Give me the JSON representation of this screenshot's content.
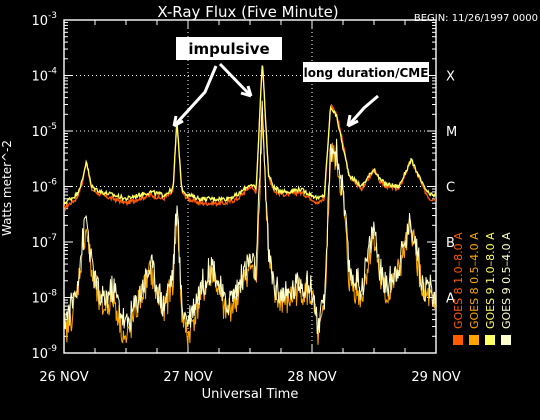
{
  "chart_data": {
    "type": "line",
    "title": "X-Ray Flux (Five Minute)",
    "begin_label": "BEGIN: 11/26/1997 0000",
    "xlabel": "Universal Time",
    "ylabel": "Watts meter^-2",
    "y_scale": "log",
    "ylim": [
      1e-09,
      0.001
    ],
    "xlim": [
      0,
      3
    ],
    "x_units": "days since 26 NOV 1997 0000 UT",
    "x_ticks": [
      {
        "x": 0,
        "label": "26 NOV"
      },
      {
        "x": 1,
        "label": "27 NOV"
      },
      {
        "x": 2,
        "label": "28 NOV"
      },
      {
        "x": 3,
        "label": "29 NOV"
      }
    ],
    "y_ticks": [
      {
        "exp": -9,
        "label": "10",
        "sup": "-9"
      },
      {
        "exp": -8,
        "label": "10",
        "sup": "-8"
      },
      {
        "exp": -7,
        "label": "10",
        "sup": "-7"
      },
      {
        "exp": -6,
        "label": "10",
        "sup": "-6"
      },
      {
        "exp": -5,
        "label": "10",
        "sup": "-5"
      },
      {
        "exp": -4,
        "label": "10",
        "sup": "-4"
      },
      {
        "exp": -3,
        "label": "10",
        "sup": "-3"
      }
    ],
    "flare_classes": [
      {
        "label": "A",
        "value": 1e-08
      },
      {
        "label": "B",
        "value": 1e-07
      },
      {
        "label": "C",
        "value": 1e-06
      },
      {
        "label": "M",
        "value": 1e-05
      },
      {
        "label": "X",
        "value": 0.0001
      }
    ],
    "grid": {
      "horizontal_dotted_at": [
        0.0001,
        1e-05,
        1e-06
      ],
      "vertical_dotted_at": [
        1,
        2
      ]
    },
    "legend": [
      {
        "name": "GOES 8  1.0–8.0 A",
        "color": "#ff5a00"
      },
      {
        "name": "GOES 8  0.5–4.0 A",
        "color": "#ffa500"
      },
      {
        "name": "GOES 9  1.0–8.0 A",
        "color": "#ffff66"
      },
      {
        "name": "GOES 9  0.5–4.0 A",
        "color": "#ffffcc"
      }
    ],
    "annotations": [
      {
        "text": "impulsive",
        "boxed": true
      },
      {
        "text": "long duration/CME",
        "boxed": true
      }
    ],
    "series": [
      {
        "name": "GOES 8  1.0–8.0 A",
        "color": "#ff5a00",
        "x": [
          0,
          0.05,
          0.1,
          0.15,
          0.18,
          0.22,
          0.3,
          0.4,
          0.5,
          0.6,
          0.7,
          0.8,
          0.88,
          0.91,
          0.95,
          1.0,
          1.1,
          1.2,
          1.3,
          1.4,
          1.5,
          1.55,
          1.6,
          1.65,
          1.7,
          1.8,
          1.9,
          2.0,
          2.05,
          2.1,
          2.15,
          2.2,
          2.25,
          2.3,
          2.4,
          2.5,
          2.55,
          2.6,
          2.7,
          2.8,
          2.9,
          2.95,
          3.0
        ],
        "y": [
          4e-07,
          5e-07,
          6e-07,
          1.2e-06,
          3e-06,
          9e-07,
          7e-07,
          6e-07,
          5e-07,
          6e-07,
          7e-07,
          6e-07,
          8e-07,
          1.6e-05,
          8e-07,
          6e-07,
          5e-07,
          5e-07,
          5e-07,
          6e-07,
          1e-06,
          8e-07,
          0.0002,
          1.5e-06,
          8e-07,
          7e-07,
          8e-07,
          6e-07,
          5e-07,
          6e-07,
          3e-05,
          2e-05,
          6e-06,
          1.5e-06,
          9e-07,
          2e-06,
          1.2e-06,
          1e-06,
          9e-07,
          3e-06,
          9e-07,
          6e-07,
          6e-07
        ]
      },
      {
        "name": "GOES 9  1.0–8.0 A",
        "color": "#ffff66",
        "x": [
          0,
          0.05,
          0.1,
          0.15,
          0.18,
          0.22,
          0.3,
          0.4,
          0.5,
          0.6,
          0.7,
          0.8,
          0.88,
          0.91,
          0.95,
          1.0,
          1.1,
          1.2,
          1.3,
          1.4,
          1.5,
          1.55,
          1.6,
          1.65,
          1.7,
          1.8,
          1.9,
          2.0,
          2.05,
          2.1,
          2.15,
          2.2,
          2.25,
          2.3,
          2.4,
          2.5,
          2.55,
          2.6,
          2.7,
          2.8,
          2.9,
          2.95,
          3.0
        ],
        "y": [
          5e-07,
          6e-07,
          7e-07,
          1.3e-06,
          3e-06,
          1e-06,
          8e-07,
          7e-07,
          6e-07,
          7e-07,
          8e-07,
          7e-07,
          9e-07,
          1.5e-05,
          9e-07,
          7e-07,
          6e-07,
          6e-07,
          6e-07,
          7e-07,
          1.1e-06,
          9e-07,
          0.00019,
          1.6e-06,
          9e-07,
          8e-07,
          9e-07,
          7e-07,
          6e-07,
          7e-07,
          2.8e-05,
          1.8e-05,
          5e-06,
          1.6e-06,
          1e-06,
          2.1e-06,
          1.3e-06,
          1.1e-06,
          1e-06,
          3e-06,
          1e-06,
          7e-07,
          7e-07
        ]
      },
      {
        "name": "GOES 8  0.5–4.0 A",
        "color": "#ffa500",
        "x": [
          0,
          0.05,
          0.1,
          0.15,
          0.18,
          0.22,
          0.3,
          0.4,
          0.5,
          0.6,
          0.7,
          0.8,
          0.88,
          0.91,
          0.95,
          1.0,
          1.1,
          1.2,
          1.3,
          1.4,
          1.5,
          1.55,
          1.6,
          1.65,
          1.7,
          1.8,
          1.9,
          2.0,
          2.05,
          2.1,
          2.15,
          2.2,
          2.25,
          2.3,
          2.4,
          2.5,
          2.55,
          2.6,
          2.7,
          2.8,
          2.9,
          2.95,
          3.0
        ],
        "y": [
          2e-09,
          4e-09,
          1e-08,
          8e-08,
          2e-07,
          3e-08,
          6e-09,
          1e-08,
          1.5e-09,
          8e-09,
          3e-08,
          5e-09,
          2e-08,
          4e-07,
          5e-09,
          2e-09,
          1e-08,
          3e-08,
          5e-09,
          1e-08,
          4e-08,
          2e-08,
          2e-05,
          5e-08,
          1e-08,
          8e-09,
          1.5e-08,
          1e-08,
          2e-09,
          5e-09,
          4e-06,
          3e-06,
          6e-07,
          2e-08,
          1e-08,
          1.5e-07,
          2e-08,
          1e-08,
          3e-08,
          2e-07,
          1e-08,
          1e-08,
          5e-09
        ]
      },
      {
        "name": "GOES 9  0.5–4.0 A",
        "color": "#ffffcc",
        "x": [
          0,
          0.05,
          0.1,
          0.15,
          0.18,
          0.22,
          0.3,
          0.4,
          0.5,
          0.6,
          0.7,
          0.8,
          0.88,
          0.91,
          0.95,
          1.0,
          1.1,
          1.2,
          1.3,
          1.4,
          1.5,
          1.55,
          1.6,
          1.65,
          1.7,
          1.8,
          1.9,
          2.0,
          2.05,
          2.1,
          2.15,
          2.2,
          2.25,
          2.3,
          2.4,
          2.5,
          2.55,
          2.6,
          2.7,
          2.8,
          2.9,
          2.95,
          3.0
        ],
        "y": [
          4e-09,
          6e-09,
          1.5e-08,
          1e-07,
          3e-07,
          4e-08,
          8e-09,
          1.5e-08,
          3e-09,
          1e-08,
          4e-08,
          7e-09,
          3e-08,
          5e-07,
          7e-09,
          4e-09,
          1.5e-08,
          4e-08,
          7e-09,
          1.5e-08,
          5e-08,
          3e-08,
          2.5e-05,
          6e-08,
          1.5e-08,
          1e-08,
          2e-08,
          1.5e-08,
          3e-09,
          7e-09,
          5e-06,
          4e-06,
          8e-07,
          3e-08,
          1.5e-08,
          2e-07,
          3e-08,
          1.5e-08,
          4e-08,
          2.5e-07,
          1.5e-08,
          1.5e-08,
          8e-09
        ]
      }
    ]
  }
}
